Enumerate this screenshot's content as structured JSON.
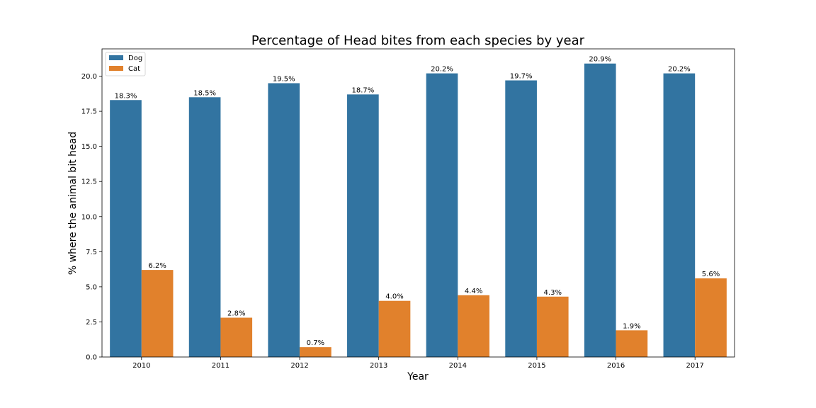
{
  "chart_data": {
    "type": "bar",
    "title": "Percentage of Head bites from each species by year",
    "xlabel": "Year",
    "ylabel": "% where the animal bit head",
    "categories": [
      "2010",
      "2011",
      "2012",
      "2013",
      "2014",
      "2015",
      "2016",
      "2017"
    ],
    "series": [
      {
        "name": "Dog",
        "color": "#3274a1",
        "values": [
          18.3,
          18.5,
          19.5,
          18.7,
          20.2,
          19.7,
          20.9,
          20.2
        ],
        "labels": [
          "18.3%",
          "18.5%",
          "19.5%",
          "18.7%",
          "20.2%",
          "19.7%",
          "20.9%",
          "20.2%"
        ]
      },
      {
        "name": "Cat",
        "color": "#e1812c",
        "values": [
          6.2,
          2.8,
          0.7,
          4.0,
          4.4,
          4.3,
          1.9,
          5.6
        ],
        "labels": [
          "6.2%",
          "2.8%",
          "0.7%",
          "4.0%",
          "4.4%",
          "4.3%",
          "1.9%",
          "5.6%"
        ]
      }
    ],
    "ylim": [
      0,
      21.945
    ],
    "yticks": [
      "0.0",
      "2.5",
      "5.0",
      "7.5",
      "10.0",
      "12.5",
      "15.0",
      "17.5",
      "20.0"
    ],
    "legend": "top-left",
    "grid": false
  }
}
